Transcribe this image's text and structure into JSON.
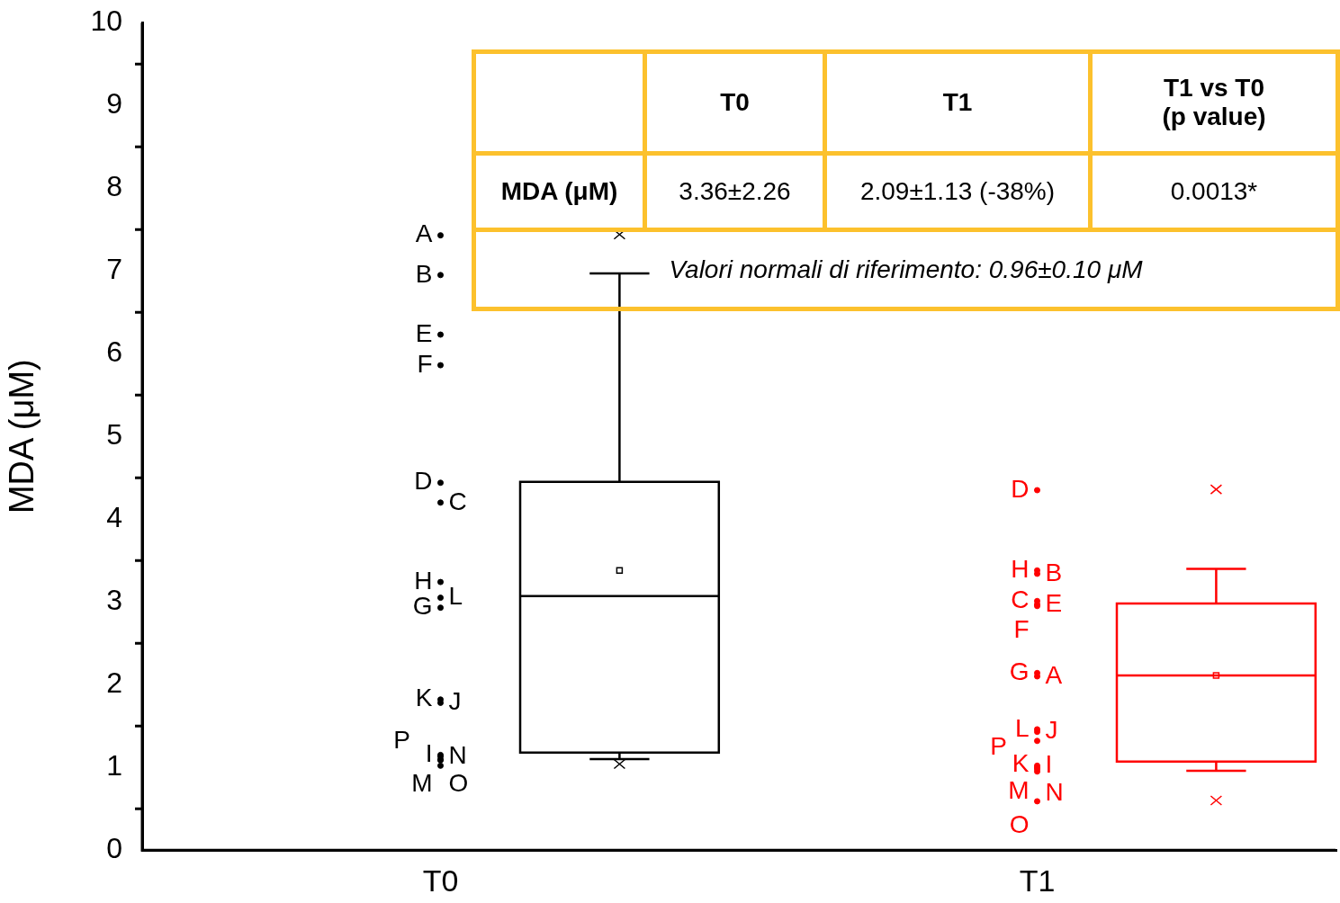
{
  "chart_data": {
    "type": "box",
    "ylabel": "MDA (μM)",
    "categories": [
      "T0",
      "T1"
    ],
    "ylim": [
      0,
      10
    ],
    "yticks": [
      0,
      1,
      2,
      3,
      4,
      5,
      6,
      7,
      8,
      9,
      10
    ],
    "boxes": [
      {
        "low": 1.1,
        "q1": 1.18,
        "median": 3.07,
        "q3": 4.45,
        "high": 6.97,
        "mean": 3.38,
        "outliers": [
          7.44,
          1.04
        ]
      },
      {
        "low": 0.96,
        "q1": 1.07,
        "median": 2.11,
        "q3": 2.98,
        "high": 3.4,
        "mean": 2.11,
        "outliers": [
          4.36,
          0.6
        ]
      }
    ],
    "colors": [
      "#000000",
      "#ff0000"
    ],
    "marker": "circle",
    "series": [
      {
        "type": "scatter",
        "color": "#000000",
        "x": [
          "T0",
          "T0",
          "T0",
          "T0",
          "T0",
          "T0",
          "T0",
          "T0",
          "T0",
          "T0",
          "T0",
          "T0",
          "T0",
          "T0",
          "T0",
          "T0"
        ],
        "values": [
          7.43,
          6.95,
          4.2,
          4.44,
          6.23,
          5.86,
          2.93,
          3.24,
          1.15,
          1.78,
          1.82,
          3.05,
          1.09,
          1.13,
          1.09,
          1.02
        ],
        "value_labels": [
          "A",
          "B",
          "C",
          "D",
          "E",
          "F",
          "G",
          "H",
          "I",
          "J",
          "K",
          "L",
          "M",
          "N",
          "O",
          "P"
        ]
      },
      {
        "type": "scatter",
        "color": "#ff0000",
        "x": [
          "T1",
          "T1",
          "T1",
          "T1",
          "T1",
          "T1",
          "T1",
          "T1",
          "T1",
          "T1",
          "T1",
          "T1",
          "T1",
          "T1",
          "T1",
          "T1"
        ],
        "values": [
          2.1,
          3.34,
          3.01,
          4.35,
          2.97,
          2.95,
          2.14,
          3.38,
          1.02,
          1.43,
          1.32,
          1.46,
          1.0,
          0.98,
          0.59,
          0.95
        ],
        "value_labels": [
          "A",
          "B",
          "C",
          "D",
          "E",
          "F",
          "G",
          "H",
          "I",
          "J",
          "K",
          "L",
          "M",
          "N",
          "O",
          "P"
        ]
      }
    ],
    "annotations": [
      "T0",
      "T1",
      "T1 vs T0\n(p value)",
      "MDA (μM)",
      "3.36±2.26",
      "2.09±1.13 (-38%)",
      "0.0013*",
      "Valori normali di riferimento: 0.96±0.10 μM"
    ]
  }
}
